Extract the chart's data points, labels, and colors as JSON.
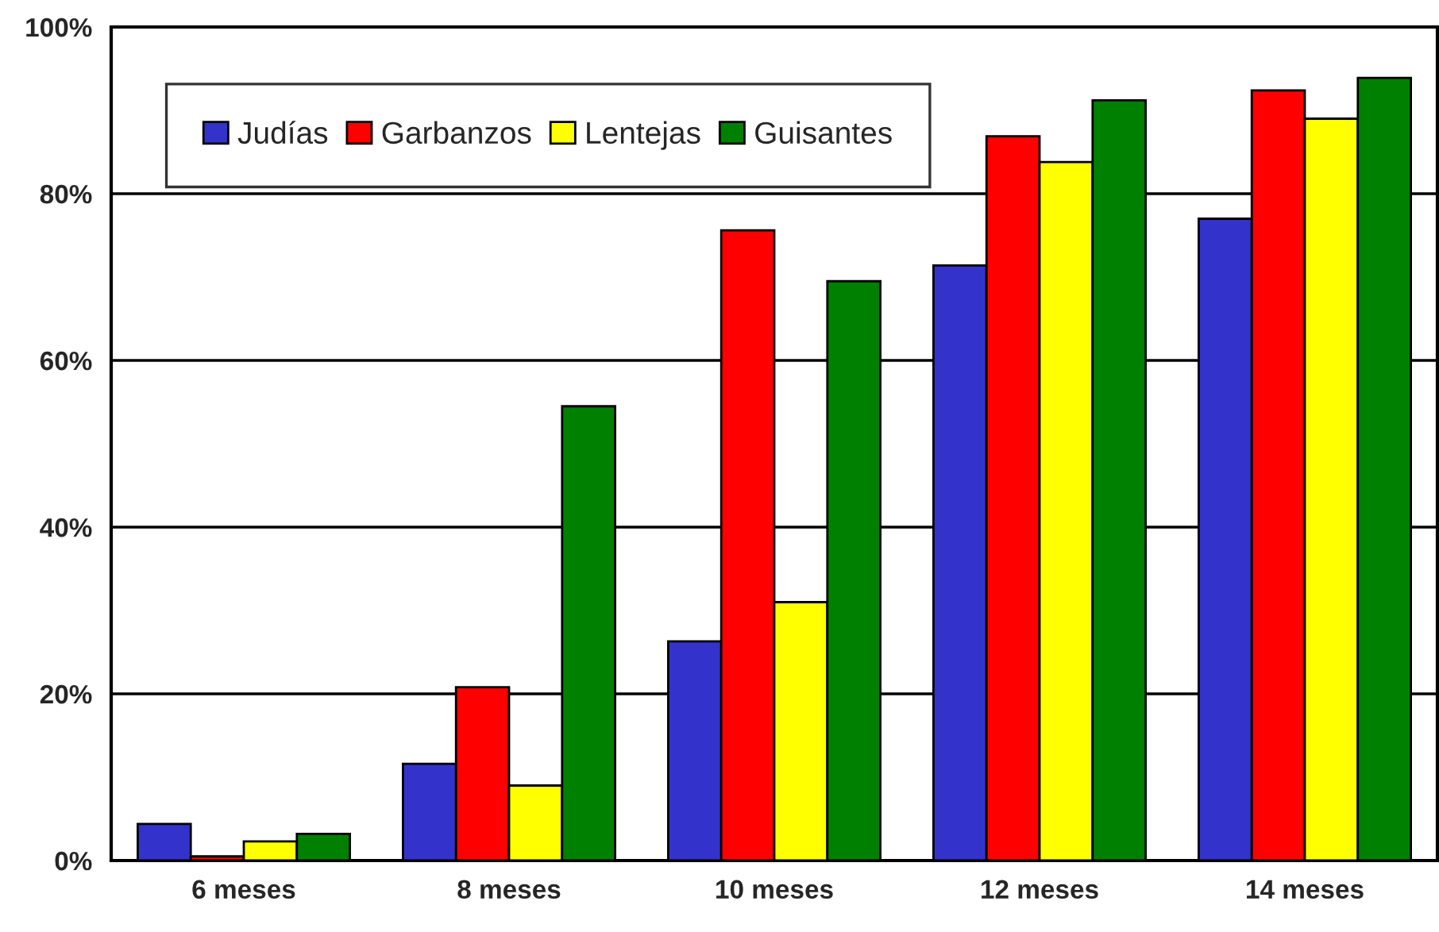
{
  "chart_data": {
    "type": "bar",
    "categories": [
      "6 meses",
      "8 meses",
      "10 meses",
      "12 meses",
      "14 meses"
    ],
    "series": [
      {
        "name": "Judías",
        "color": "#3333cc",
        "values": [
          4.4,
          11.6,
          26.3,
          71.4,
          77.0
        ]
      },
      {
        "name": "Garbanzos",
        "color": "#ff0000",
        "values": [
          0.5,
          20.8,
          75.6,
          86.9,
          92.4
        ]
      },
      {
        "name": "Lentejas",
        "color": "#ffff00",
        "values": [
          2.3,
          9.0,
          31.0,
          83.8,
          89.0
        ]
      },
      {
        "name": "Guisantes",
        "color": "#008000",
        "values": [
          3.2,
          54.5,
          69.5,
          91.2,
          93.9
        ]
      }
    ],
    "ylim": [
      0,
      100
    ],
    "yticks": [
      {
        "value": 0,
        "label": "0%"
      },
      {
        "value": 20,
        "label": "20%"
      },
      {
        "value": 40,
        "label": "40%"
      },
      {
        "value": 60,
        "label": "60%"
      },
      {
        "value": 80,
        "label": "80%"
      },
      {
        "value": 100,
        "label": "100%"
      }
    ],
    "grid": "y",
    "legend": "top left"
  }
}
